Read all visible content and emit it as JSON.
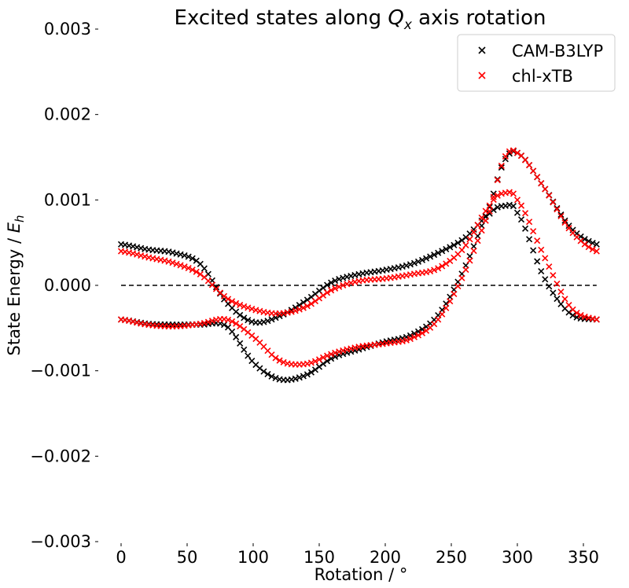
{
  "chart_data": {
    "type": "scatter",
    "title": "Excited states along Q_x axis rotation",
    "title_parts": {
      "pre": "Excited states along ",
      "sym": "Q",
      "sub": "x",
      "post": " axis rotation"
    },
    "xlabel": "Rotation / °",
    "ylabel": "State  Energy / E_h",
    "ylabel_parts": {
      "pre": "State  Energy / ",
      "sym": "E",
      "sub": "h"
    },
    "xlim": [
      -10,
      370
    ],
    "ylim": [
      -0.003,
      0.003
    ],
    "xticks": [
      0,
      50,
      100,
      150,
      200,
      250,
      300,
      350
    ],
    "xtick_labels": [
      "0",
      "50",
      "100",
      "150",
      "200",
      "250",
      "300",
      "350"
    ],
    "yticks": [
      0.003,
      0.002,
      0.001,
      0.0,
      -0.001,
      -0.002,
      -0.003
    ],
    "ytick_labels": [
      "0.003",
      "0.002",
      "0.001",
      "0.000",
      "−0.001",
      "−0.002",
      "−0.003"
    ],
    "grid": false,
    "legend_position": "top-right",
    "reference_line": {
      "y": 0.0,
      "style": "dashed",
      "color": "#000000"
    },
    "x": [
      0,
      20,
      40,
      60,
      80,
      100,
      120,
      140,
      160,
      180,
      200,
      220,
      240,
      260,
      280,
      290,
      300,
      320,
      340,
      360
    ],
    "series": [
      {
        "name": "CAM-B3LYP",
        "color": "#000000",
        "marker": "x",
        "curves": [
          {
            "y": [
              0.00048,
              0.00042,
              0.00038,
              0.00025,
              -0.0002,
              -0.00043,
              -0.00036,
              -0.00018,
              4e-05,
              0.00013,
              0.00018,
              0.00025,
              0.00038,
              0.00055,
              0.00085,
              0.00093,
              0.00085,
              0.0001,
              -0.00033,
              -0.0004
            ]
          },
          {
            "y": [
              -0.0004,
              -0.00045,
              -0.00046,
              -0.00046,
              -0.00048,
              -0.0009,
              -0.0011,
              -0.00105,
              -0.00085,
              -0.00075,
              -0.00066,
              -0.00058,
              -0.00035,
              0.0002,
              0.00095,
              0.00145,
              0.00155,
              0.00115,
              0.00068,
              0.00048
            ]
          }
        ]
      },
      {
        "name": "chl-xTB",
        "color": "#ff0000",
        "marker": "x",
        "curves": [
          {
            "y": [
              0.0004,
              0.00033,
              0.00026,
              0.00013,
              -0.00015,
              -0.00028,
              -0.00033,
              -0.00025,
              -5e-05,
              5e-05,
              8e-05,
              0.00013,
              0.0002,
              0.00045,
              0.00095,
              0.00108,
              0.001,
              0.00035,
              -0.00025,
              -0.0004
            ]
          },
          {
            "y": [
              -0.0004,
              -0.00046,
              -0.00048,
              -0.00045,
              -0.0004,
              -0.0006,
              -0.00088,
              -0.00092,
              -0.0008,
              -0.00072,
              -0.00068,
              -0.00062,
              -0.0004,
              0.00015,
              0.0009,
              0.00148,
              0.00155,
              0.00115,
              0.00065,
              0.0004
            ]
          }
        ]
      }
    ]
  }
}
